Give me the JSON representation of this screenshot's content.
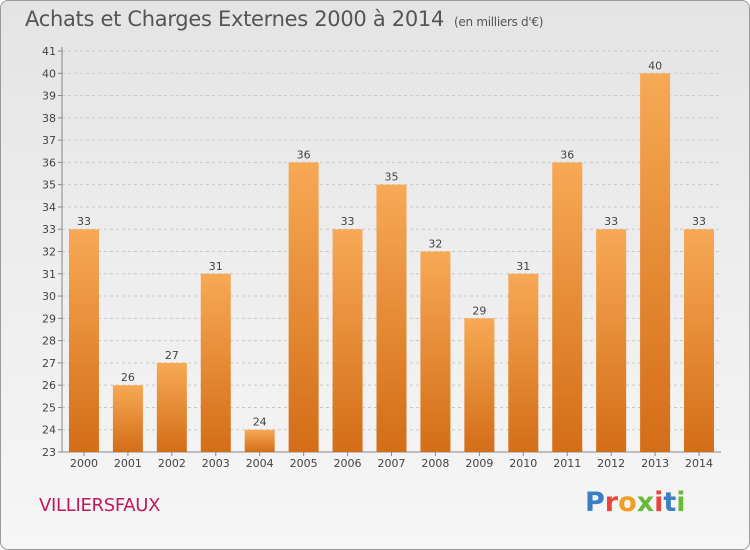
{
  "header": {
    "title": "Achats et Charges Externes 2000 à 2014",
    "unit": "(en milliers d'€)"
  },
  "footer": {
    "commune": "VILLIERSFAUX",
    "logo_text": "Proxiti",
    "logo_colors": [
      "#3a7fc4",
      "#e8453c",
      "#f0a020",
      "#69b93c",
      "#e8453c",
      "#3a7fc4",
      "#69b93c"
    ]
  },
  "colors": {
    "bar_light": "#f7a955",
    "bar_dark": "#d46d17",
    "grid": "#c8c8c8",
    "axis_text": "#444444"
  },
  "chart_data": {
    "type": "bar",
    "title": "Achats et Charges Externes 2000 à 2014",
    "subtitle": "(en milliers d'€)",
    "xlabel": "",
    "ylabel": "",
    "categories": [
      "2000",
      "2001",
      "2002",
      "2003",
      "2004",
      "2005",
      "2006",
      "2007",
      "2008",
      "2009",
      "2010",
      "2011",
      "2012",
      "2013",
      "2014"
    ],
    "values": [
      33,
      26,
      27,
      31,
      24,
      36,
      33,
      35,
      32,
      29,
      31,
      36,
      33,
      40,
      33
    ],
    "ylim": [
      23,
      41
    ],
    "yticks": [
      23,
      24,
      25,
      26,
      27,
      28,
      29,
      30,
      31,
      32,
      33,
      34,
      35,
      36,
      37,
      38,
      39,
      40,
      41
    ],
    "grid": "horizontal dashed",
    "data_labels": true
  }
}
